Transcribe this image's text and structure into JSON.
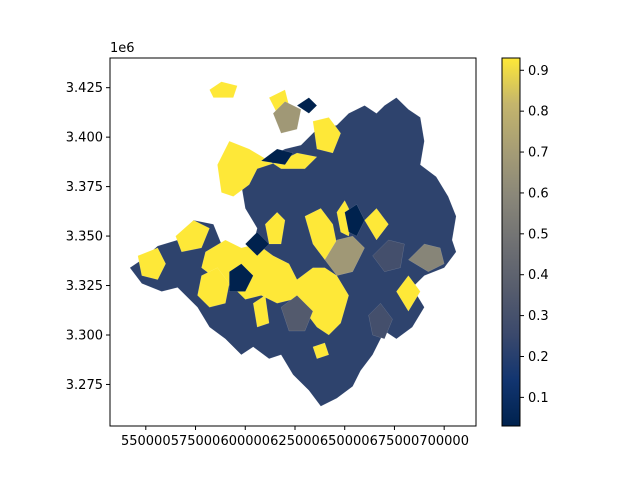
{
  "chart_data": {
    "type": "choropleth",
    "title": "",
    "xlabel": "",
    "ylabel": "",
    "y_offset_label": "1e6",
    "xlim": [
      532000,
      716000
    ],
    "ylim": [
      3254000,
      3440000
    ],
    "x_ticks": [
      550000,
      575000,
      600000,
      625000,
      650000,
      675000,
      700000
    ],
    "x_tick_labels": [
      "550000",
      "575000",
      "600000",
      "625000",
      "650000",
      "675000",
      "700000"
    ],
    "y_ticks": [
      3275000,
      3300000,
      3325000,
      3350000,
      3375000,
      3400000,
      3425000
    ],
    "y_tick_labels": [
      "3.275",
      "3.300",
      "3.325",
      "3.350",
      "3.375",
      "3.400",
      "3.425"
    ],
    "colorbar": {
      "colormap": "cividis",
      "vmin": 0.03,
      "vmax": 0.93,
      "ticks": [
        0.1,
        0.2,
        0.3,
        0.4,
        0.5,
        0.6,
        0.7,
        0.8,
        0.9
      ],
      "tick_labels": [
        "0.1",
        "0.2",
        "0.3",
        "0.4",
        "0.5",
        "0.6",
        "0.7",
        "0.8",
        "0.9"
      ]
    },
    "regions": [
      {
        "value": 0.22,
        "poly": [
          [
            548000,
            3338000
          ],
          [
            556000,
            3345000
          ],
          [
            566000,
            3348000
          ],
          [
            574000,
            3358000
          ],
          [
            584000,
            3356000
          ],
          [
            588000,
            3346000
          ],
          [
            596000,
            3342000
          ],
          [
            604000,
            3346000
          ],
          [
            606000,
            3354000
          ],
          [
            600000,
            3364000
          ],
          [
            598000,
            3376000
          ],
          [
            604000,
            3386000
          ],
          [
            612000,
            3390000
          ],
          [
            620000,
            3394000
          ],
          [
            628000,
            3396000
          ],
          [
            636000,
            3404000
          ],
          [
            646000,
            3406000
          ],
          [
            652000,
            3412000
          ],
          [
            660000,
            3416000
          ],
          [
            666000,
            3412000
          ],
          [
            670000,
            3416000
          ],
          [
            676000,
            3420000
          ],
          [
            682000,
            3414000
          ],
          [
            688000,
            3410000
          ],
          [
            690000,
            3398000
          ],
          [
            688000,
            3386000
          ],
          [
            696000,
            3380000
          ],
          [
            702000,
            3370000
          ],
          [
            706000,
            3360000
          ],
          [
            704000,
            3348000
          ],
          [
            706000,
            3342000
          ],
          [
            700000,
            3334000
          ],
          [
            690000,
            3330000
          ],
          [
            684000,
            3324000
          ],
          [
            690000,
            3314000
          ],
          [
            684000,
            3304000
          ],
          [
            676000,
            3298000
          ],
          [
            670000,
            3302000
          ],
          [
            664000,
            3290000
          ],
          [
            658000,
            3282000
          ],
          [
            654000,
            3274000
          ],
          [
            646000,
            3268000
          ],
          [
            638000,
            3264000
          ],
          [
            632000,
            3272000
          ],
          [
            624000,
            3280000
          ],
          [
            618000,
            3290000
          ],
          [
            612000,
            3288000
          ],
          [
            604000,
            3294000
          ],
          [
            598000,
            3290000
          ],
          [
            590000,
            3298000
          ],
          [
            582000,
            3304000
          ],
          [
            576000,
            3314000
          ],
          [
            566000,
            3324000
          ],
          [
            558000,
            3322000
          ],
          [
            548000,
            3326000
          ],
          [
            542000,
            3334000
          ]
        ]
      },
      {
        "value": 0.93,
        "poly": [
          [
            546000,
            3340000
          ],
          [
            556000,
            3344000
          ],
          [
            560000,
            3336000
          ],
          [
            556000,
            3328000
          ],
          [
            548000,
            3330000
          ]
        ]
      },
      {
        "value": 0.93,
        "poly": [
          [
            565000,
            3350000
          ],
          [
            574000,
            3358000
          ],
          [
            582000,
            3354000
          ],
          [
            578000,
            3344000
          ],
          [
            568000,
            3342000
          ]
        ]
      },
      {
        "value": 0.93,
        "poly": [
          [
            582000,
            3424000
          ],
          [
            588000,
            3428000
          ],
          [
            596000,
            3426000
          ],
          [
            594000,
            3420000
          ],
          [
            584000,
            3420000
          ]
        ]
      },
      {
        "value": 0.93,
        "poly": [
          [
            612000,
            3420000
          ],
          [
            620000,
            3424000
          ],
          [
            622000,
            3416000
          ],
          [
            616000,
            3412000
          ]
        ]
      },
      {
        "value": 0.68,
        "poly": [
          [
            614000,
            3412000
          ],
          [
            620000,
            3418000
          ],
          [
            628000,
            3414000
          ],
          [
            626000,
            3404000
          ],
          [
            618000,
            3402000
          ]
        ]
      },
      {
        "value": 0.03,
        "poly": [
          [
            626000,
            3416000
          ],
          [
            632000,
            3420000
          ],
          [
            636000,
            3416000
          ],
          [
            632000,
            3412000
          ]
        ]
      },
      {
        "value": 0.93,
        "poly": [
          [
            634000,
            3408000
          ],
          [
            642000,
            3410000
          ],
          [
            648000,
            3402000
          ],
          [
            644000,
            3392000
          ],
          [
            636000,
            3394000
          ]
        ]
      },
      {
        "value": 0.93,
        "poly": [
          [
            592000,
            3398000
          ],
          [
            602000,
            3394000
          ],
          [
            612000,
            3388000
          ],
          [
            618000,
            3384000
          ],
          [
            630000,
            3384000
          ],
          [
            636000,
            3390000
          ],
          [
            626000,
            3392000
          ],
          [
            618000,
            3388000
          ],
          [
            606000,
            3384000
          ],
          [
            602000,
            3376000
          ],
          [
            594000,
            3370000
          ],
          [
            588000,
            3372000
          ],
          [
            586000,
            3386000
          ]
        ]
      },
      {
        "value": 0.03,
        "poly": [
          [
            608000,
            3388000
          ],
          [
            616000,
            3394000
          ],
          [
            624000,
            3392000
          ],
          [
            620000,
            3386000
          ]
        ]
      },
      {
        "value": 0.93,
        "poly": [
          [
            610000,
            3356000
          ],
          [
            616000,
            3362000
          ],
          [
            620000,
            3358000
          ],
          [
            618000,
            3346000
          ],
          [
            612000,
            3346000
          ]
        ]
      },
      {
        "value": 0.93,
        "poly": [
          [
            630000,
            3360000
          ],
          [
            638000,
            3364000
          ],
          [
            644000,
            3356000
          ],
          [
            646000,
            3346000
          ],
          [
            640000,
            3338000
          ],
          [
            634000,
            3346000
          ]
        ]
      },
      {
        "value": 0.93,
        "poly": [
          [
            646000,
            3362000
          ],
          [
            650000,
            3368000
          ],
          [
            654000,
            3360000
          ],
          [
            652000,
            3350000
          ],
          [
            648000,
            3352000
          ]
        ]
      },
      {
        "value": 0.03,
        "poly": [
          [
            650000,
            3362000
          ],
          [
            656000,
            3366000
          ],
          [
            660000,
            3358000
          ],
          [
            656000,
            3350000
          ],
          [
            652000,
            3352000
          ]
        ]
      },
      {
        "value": 0.93,
        "poly": [
          [
            660000,
            3358000
          ],
          [
            666000,
            3364000
          ],
          [
            672000,
            3356000
          ],
          [
            666000,
            3348000
          ]
        ]
      },
      {
        "value": 0.68,
        "poly": [
          [
            640000,
            3338000
          ],
          [
            646000,
            3348000
          ],
          [
            654000,
            3350000
          ],
          [
            660000,
            3344000
          ],
          [
            654000,
            3332000
          ],
          [
            646000,
            3330000
          ]
        ]
      },
      {
        "value": 0.58,
        "poly": [
          [
            682000,
            3338000
          ],
          [
            690000,
            3346000
          ],
          [
            698000,
            3344000
          ],
          [
            700000,
            3336000
          ],
          [
            692000,
            3332000
          ]
        ]
      },
      {
        "value": 0.93,
        "poly": [
          [
            676000,
            3322000
          ],
          [
            682000,
            3330000
          ],
          [
            688000,
            3322000
          ],
          [
            682000,
            3312000
          ]
        ]
      },
      {
        "value": 0.93,
        "poly": [
          [
            580000,
            3342000
          ],
          [
            590000,
            3348000
          ],
          [
            598000,
            3344000
          ],
          [
            606000,
            3346000
          ],
          [
            614000,
            3340000
          ],
          [
            622000,
            3336000
          ],
          [
            626000,
            3328000
          ],
          [
            634000,
            3334000
          ],
          [
            640000,
            3334000
          ],
          [
            646000,
            3330000
          ],
          [
            652000,
            3320000
          ],
          [
            648000,
            3306000
          ],
          [
            642000,
            3300000
          ],
          [
            636000,
            3304000
          ],
          [
            630000,
            3312000
          ],
          [
            624000,
            3318000
          ],
          [
            616000,
            3316000
          ],
          [
            608000,
            3320000
          ],
          [
            600000,
            3318000
          ],
          [
            594000,
            3324000
          ],
          [
            586000,
            3328000
          ],
          [
            578000,
            3334000
          ]
        ]
      },
      {
        "value": 0.93,
        "poly": [
          [
            578000,
            3330000
          ],
          [
            586000,
            3334000
          ],
          [
            592000,
            3326000
          ],
          [
            590000,
            3316000
          ],
          [
            582000,
            3314000
          ],
          [
            576000,
            3320000
          ]
        ]
      },
      {
        "value": 0.93,
        "poly": [
          [
            604000,
            3316000
          ],
          [
            610000,
            3320000
          ],
          [
            612000,
            3306000
          ],
          [
            606000,
            3304000
          ]
        ]
      },
      {
        "value": 0.93,
        "poly": [
          [
            634000,
            3294000
          ],
          [
            640000,
            3296000
          ],
          [
            642000,
            3290000
          ],
          [
            636000,
            3288000
          ]
        ]
      },
      {
        "value": 0.03,
        "poly": [
          [
            592000,
            3332000
          ],
          [
            598000,
            3336000
          ],
          [
            604000,
            3330000
          ],
          [
            600000,
            3322000
          ],
          [
            592000,
            3322000
          ]
        ]
      },
      {
        "value": 0.03,
        "poly": [
          [
            600000,
            3346000
          ],
          [
            606000,
            3352000
          ],
          [
            612000,
            3346000
          ],
          [
            606000,
            3340000
          ]
        ]
      },
      {
        "value": 0.29,
        "poly": [
          [
            664000,
            3340000
          ],
          [
            672000,
            3348000
          ],
          [
            680000,
            3346000
          ],
          [
            678000,
            3334000
          ],
          [
            670000,
            3332000
          ]
        ]
      },
      {
        "value": 0.29,
        "poly": [
          [
            662000,
            3310000
          ],
          [
            668000,
            3316000
          ],
          [
            674000,
            3308000
          ],
          [
            670000,
            3298000
          ],
          [
            664000,
            3300000
          ]
        ]
      },
      {
        "value": 0.35,
        "poly": [
          [
            618000,
            3314000
          ],
          [
            626000,
            3320000
          ],
          [
            634000,
            3312000
          ],
          [
            630000,
            3302000
          ],
          [
            622000,
            3302000
          ]
        ]
      }
    ]
  }
}
